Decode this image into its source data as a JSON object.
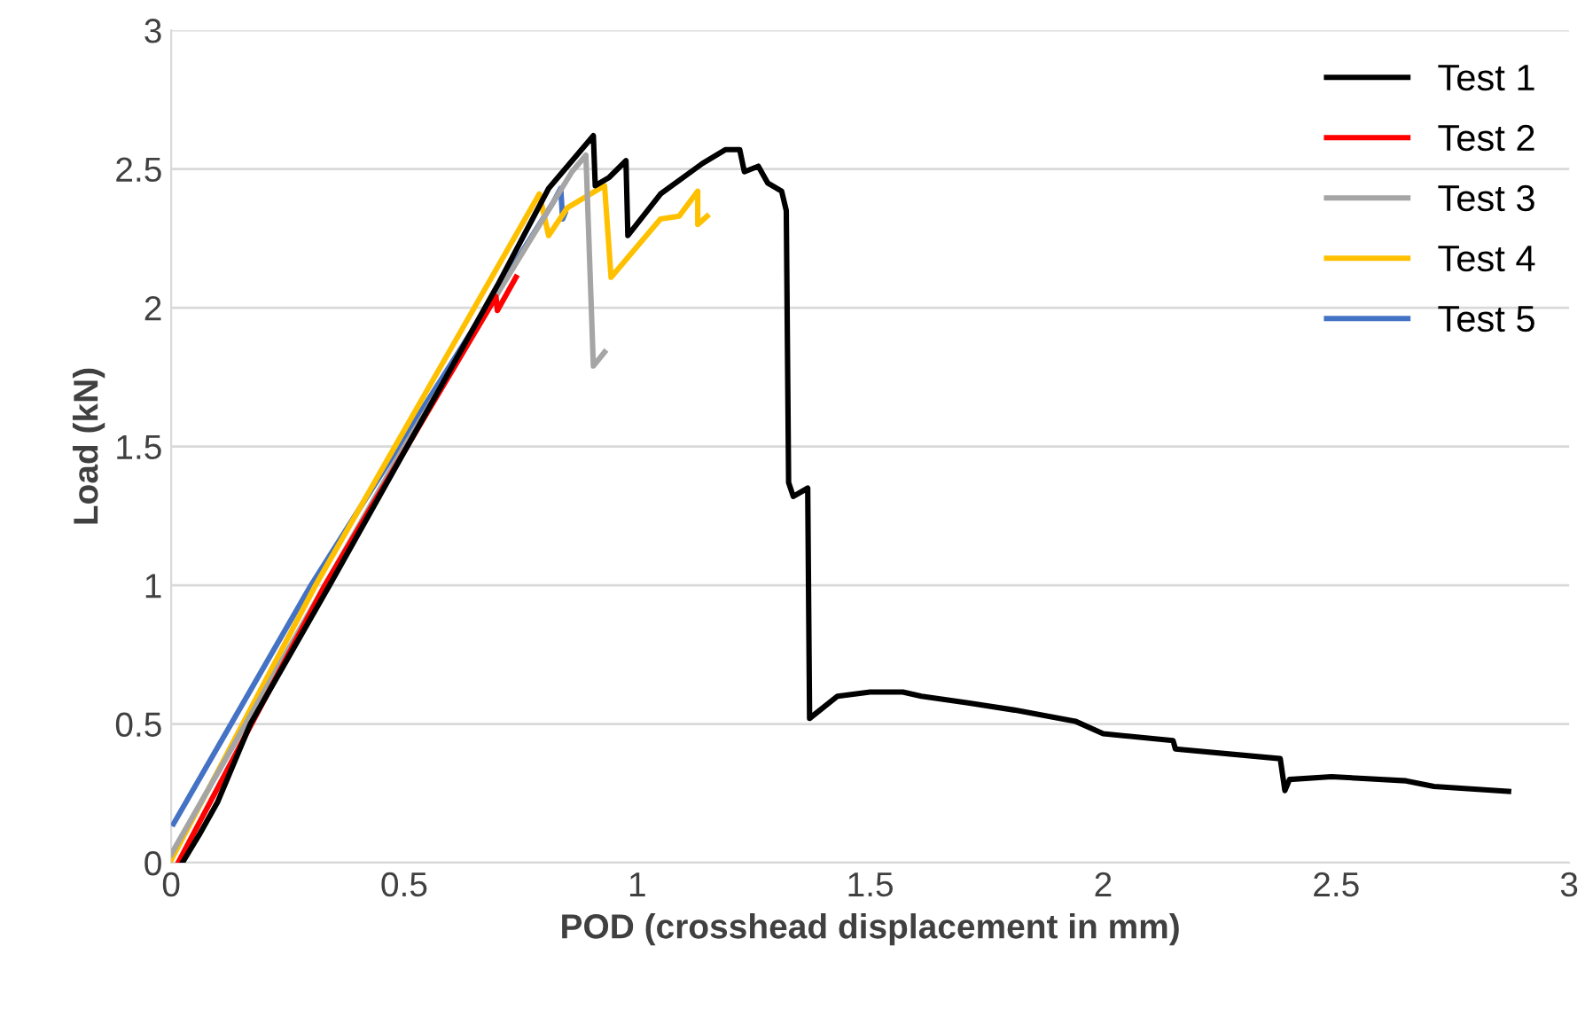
{
  "chart_data": {
    "type": "line",
    "xlabel": "POD (crosshead displacement in mm)",
    "ylabel": "Load (kN)",
    "xlim": [
      0,
      3
    ],
    "ylim": [
      0,
      3
    ],
    "xticks": [
      0,
      0.5,
      1,
      1.5,
      2,
      2.5,
      3
    ],
    "yticks": [
      0,
      0.5,
      1,
      1.5,
      2,
      2.5,
      3
    ],
    "grid": "y",
    "legend": "top right",
    "marker": "none",
    "line_style": "solid",
    "series": [
      {
        "name": "Test 1",
        "color": "#000000",
        "x": [
          0.024,
          0.06,
          0.1,
          0.17,
          0.34,
          0.5,
          0.7,
          0.81,
          0.906,
          0.91,
          0.94,
          0.976,
          0.98,
          1.05,
          1.14,
          1.19,
          1.22,
          1.23,
          1.26,
          1.28,
          1.31,
          1.32,
          1.325,
          1.335,
          1.366,
          1.37,
          1.43,
          1.5,
          1.57,
          1.61,
          1.71,
          1.81,
          1.94,
          2.0,
          2.15,
          2.155,
          2.38,
          2.39,
          2.4,
          2.49,
          2.65,
          2.71,
          2.87
        ],
        "values": [
          0,
          0.1,
          0.22,
          0.5,
          1.0,
          1.48,
          2.08,
          2.43,
          2.62,
          2.44,
          2.47,
          2.53,
          2.26,
          2.41,
          2.52,
          2.57,
          2.57,
          2.49,
          2.51,
          2.45,
          2.42,
          2.35,
          1.37,
          1.32,
          1.35,
          0.52,
          0.6,
          0.615,
          0.615,
          0.6,
          0.576,
          0.55,
          0.51,
          0.465,
          0.44,
          0.41,
          0.375,
          0.26,
          0.3,
          0.31,
          0.295,
          0.275,
          0.257
        ]
      },
      {
        "name": "Test 2",
        "color": "#ff0000",
        "x": [
          0.015,
          0.33,
          0.697,
          0.7,
          0.74
        ],
        "values": [
          0,
          1.0,
          2.04,
          1.99,
          2.11
        ]
      },
      {
        "name": "Test 3",
        "color": "#a5a5a5",
        "x": [
          0.0,
          0.5,
          0.86,
          0.89,
          0.906,
          0.93
        ],
        "values": [
          0.03,
          1.5,
          2.49,
          2.55,
          1.79,
          1.84
        ]
      },
      {
        "name": "Test 4",
        "color": "#ffc000",
        "x": [
          0.0,
          0.31,
          0.79,
          0.81,
          0.85,
          0.91,
          0.93,
          0.944,
          1.05,
          1.09,
          1.13,
          1.13,
          1.15
        ],
        "values": [
          0.01,
          1.0,
          2.41,
          2.26,
          2.36,
          2.42,
          2.44,
          2.11,
          2.32,
          2.33,
          2.42,
          2.3,
          2.33
        ]
      },
      {
        "name": "Test 5",
        "color": "#4472c4",
        "x": [
          0.005,
          0.3,
          0.82,
          0.836,
          0.84,
          0.845
        ],
        "values": [
          0.14,
          1.0,
          2.38,
          2.43,
          2.32,
          2.34
        ]
      }
    ]
  }
}
